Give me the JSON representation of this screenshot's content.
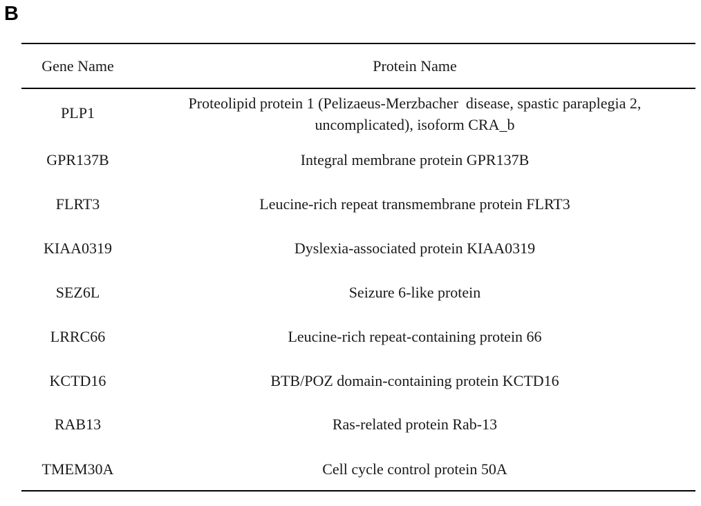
{
  "panel_label": "B",
  "table": {
    "headers": {
      "gene": "Gene Name",
      "protein": "Protein Name"
    },
    "rows": [
      {
        "gene": "PLP1",
        "protein_line1": "Proteolipid protein 1 (Pelizaeus-Merzbacher  disease, spastic paraplegia 2,",
        "protein_line2": "uncomplicated), isoform CRA_b"
      },
      {
        "gene": "GPR137B",
        "protein": "Integral membrane protein GPR137B"
      },
      {
        "gene": "FLRT3",
        "protein": "Leucine-rich repeat transmembrane protein FLRT3"
      },
      {
        "gene": "KIAA0319",
        "protein": "Dyslexia-associated protein KIAA0319"
      },
      {
        "gene": "SEZ6L",
        "protein": "Seizure 6-like protein"
      },
      {
        "gene": "LRRC66",
        "protein": "Leucine-rich repeat-containing protein 66"
      },
      {
        "gene": "KCTD16",
        "protein": "BTB/POZ domain-containing protein KCTD16"
      },
      {
        "gene": "RAB13",
        "protein": "Ras-related protein Rab-13"
      },
      {
        "gene": "TMEM30A",
        "protein": "Cell cycle control protein 50A"
      }
    ]
  }
}
